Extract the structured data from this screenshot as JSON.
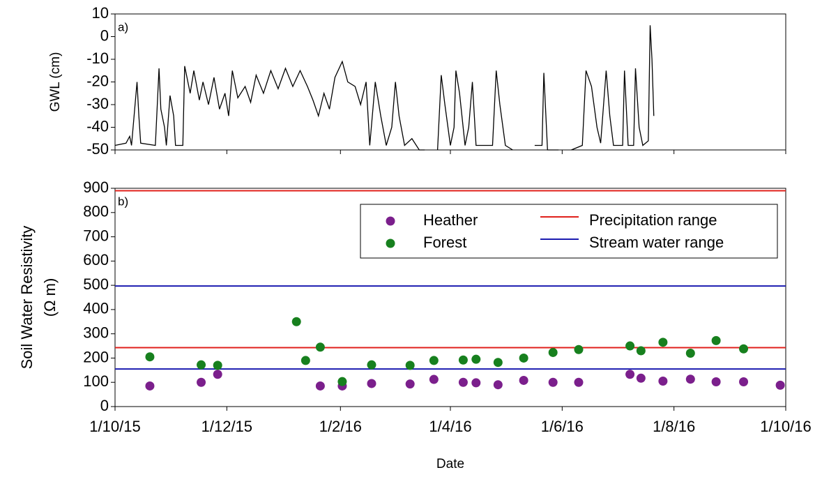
{
  "chart_data": [
    {
      "type": "line",
      "annotation": "a)",
      "ylabel": "GWL (cm)",
      "xlim": [
        "2015-10-01",
        "2016-10-01"
      ],
      "ylim": [
        -50,
        10
      ],
      "yticks": [
        10,
        0,
        -10,
        -20,
        -30,
        -40,
        -50
      ],
      "series": [
        {
          "name": "GWL",
          "color": "#000000",
          "x": [
            "2015-10-01",
            "2015-10-07",
            "2015-10-09",
            "2015-10-10",
            "2015-10-13",
            "2015-10-14",
            "2015-10-15",
            "2015-10-23",
            "2015-10-25",
            "2015-10-26",
            "2015-10-28",
            "2015-10-29",
            "2015-10-31",
            "2015-11-02",
            "2015-11-03",
            "2015-11-07",
            "2015-11-08",
            "2015-11-11",
            "2015-11-13",
            "2015-11-16",
            "2015-11-18",
            "2015-11-21",
            "2015-11-24",
            "2015-11-27",
            "2015-11-30",
            "2015-12-02",
            "2015-12-04",
            "2015-12-07",
            "2015-12-11",
            "2015-12-14",
            "2015-12-17",
            "2015-12-21",
            "2015-12-25",
            "2015-12-29",
            "2016-01-02",
            "2016-01-06",
            "2016-01-10",
            "2016-01-14",
            "2016-01-17",
            "2016-01-20",
            "2016-01-23",
            "2016-01-26",
            "2016-01-29",
            "2016-02-02",
            "2016-02-05",
            "2016-02-09",
            "2016-02-12",
            "2016-02-15",
            "2016-02-17",
            "2016-02-20",
            "2016-02-23",
            "2016-02-26",
            "2016-02-29",
            "2016-03-02",
            "2016-03-04",
            "2016-03-07",
            "2016-03-11",
            "2016-03-15",
            "2016-03-18",
            "2016-03-21",
            "2016-03-25",
            "2016-03-27",
            "2016-03-29",
            "2016-04-01",
            "2016-04-03",
            "2016-04-04",
            "2016-04-06",
            "2016-04-09",
            "2016-04-11",
            "2016-04-13",
            "2016-04-15",
            "2016-04-24",
            "2016-04-26",
            "2016-04-28",
            "2016-05-01",
            "2016-05-05",
            "2016-05-11",
            "2016-05-17",
            "2016-05-21",
            "2016-05-22",
            "2016-05-24",
            "2016-05-30",
            "2016-06-03",
            "2016-06-06",
            "2016-06-12",
            "2016-06-14",
            "2016-06-17",
            "2016-06-20",
            "2016-06-22",
            "2016-06-25",
            "2016-06-27",
            "2016-06-29",
            "2016-07-04",
            "2016-07-05",
            "2016-07-07",
            "2016-07-10",
            "2016-07-11",
            "2016-07-13",
            "2016-07-15",
            "2016-07-18",
            "2016-07-19",
            "2016-07-20",
            "2016-07-21"
          ],
          "values": [
            -48,
            -47,
            -44,
            -48,
            -20,
            -35,
            -47,
            -48,
            -14,
            -32,
            -40,
            -48,
            -26,
            -35,
            -48,
            -48,
            -13,
            -25,
            -15,
            -28,
            -20,
            -30,
            -18,
            -32,
            -25,
            -35,
            -15,
            -27,
            -22,
            -29,
            -17,
            -25,
            -15,
            -23,
            -14,
            -22,
            -15,
            -22,
            -28,
            -35,
            -25,
            -32,
            -18,
            -11,
            -20,
            -22,
            -30,
            -20,
            -48,
            -20,
            -35,
            -48,
            -40,
            -20,
            -35,
            -48,
            -45,
            -50,
            -50,
            null,
            -50,
            -17,
            -30,
            -48,
            -40,
            -15,
            -25,
            -48,
            -40,
            -20,
            -48,
            -48,
            -15,
            -30,
            -48,
            -50,
            null,
            -48,
            -48,
            -16,
            -50,
            -50,
            null,
            -50,
            -48,
            -15,
            -22,
            -40,
            -47,
            -15,
            -35,
            -48,
            -48,
            -15,
            -48,
            -48,
            -14,
            -40,
            -48,
            -46,
            5,
            -10,
            -35
          ]
        }
      ]
    },
    {
      "type": "scatter",
      "annotation": "b)",
      "ylabel": [
        "Soil Water Resistivity",
        "(Ω m)"
      ],
      "xlabel": "Date",
      "xlim": [
        "2015-10-01",
        "2016-10-01"
      ],
      "xticks": [
        {
          "value": "2015-10-01",
          "label": "1/10/15"
        },
        {
          "value": "2015-12-01",
          "label": "1/12/15"
        },
        {
          "value": "2016-02-01",
          "label": "1/2/16"
        },
        {
          "value": "2016-04-01",
          "label": "1/4/16"
        },
        {
          "value": "2016-06-01",
          "label": "1/6/16"
        },
        {
          "value": "2016-08-01",
          "label": "1/8/16"
        },
        {
          "value": "2016-10-01",
          "label": "1/10/16"
        }
      ],
      "ylim": [
        0,
        900
      ],
      "yticks": [
        0,
        100,
        200,
        300,
        400,
        500,
        600,
        700,
        800,
        900
      ],
      "legend": "upper right",
      "series": [
        {
          "name": "Heather",
          "color": "#7b1f8c",
          "x": [
            "2015-10-20",
            "2015-11-17",
            "2015-11-26",
            "2016-01-21",
            "2016-02-02",
            "2016-02-18",
            "2016-03-10",
            "2016-03-23",
            "2016-04-08",
            "2016-04-15",
            "2016-04-27",
            "2016-05-11",
            "2016-05-27",
            "2016-06-10",
            "2016-07-08",
            "2016-07-14",
            "2016-07-26",
            "2016-08-10",
            "2016-08-24",
            "2016-09-08",
            "2016-09-28"
          ],
          "values": [
            85,
            100,
            133,
            85,
            85,
            95,
            93,
            112,
            100,
            98,
            90,
            108,
            100,
            100,
            133,
            117,
            105,
            113,
            102,
            102,
            88
          ]
        },
        {
          "name": "Forest",
          "color": "#17801e",
          "x": [
            "2015-10-20",
            "2015-11-17",
            "2015-11-26",
            "2016-01-08",
            "2016-01-13",
            "2016-01-21",
            "2016-02-02",
            "2016-02-18",
            "2016-03-10",
            "2016-03-23",
            "2016-04-08",
            "2016-04-15",
            "2016-04-27",
            "2016-05-11",
            "2016-05-27",
            "2016-06-10",
            "2016-07-08",
            "2016-07-14",
            "2016-07-26",
            "2016-08-10",
            "2016-08-24",
            "2016-09-08"
          ],
          "values": [
            205,
            172,
            170,
            350,
            190,
            245,
            103,
            172,
            170,
            190,
            192,
            195,
            182,
            200,
            223,
            235,
            250,
            230,
            265,
            220,
            272,
            238
          ]
        }
      ],
      "ranges": [
        {
          "name": "Precipitation range",
          "color": "#e0201b",
          "values": [
            243,
            890
          ]
        },
        {
          "name": "Stream water range",
          "color": "#1b1bb0",
          "values": [
            155,
            497
          ]
        }
      ]
    }
  ]
}
